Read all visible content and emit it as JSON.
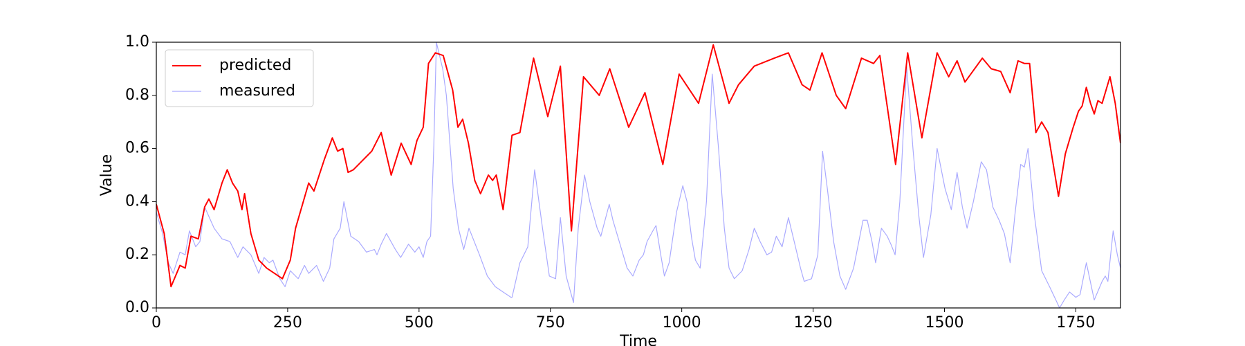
{
  "chart_data": {
    "type": "line",
    "xlabel": "Time",
    "ylabel": "Value",
    "xlim": [
      0,
      1835
    ],
    "ylim": [
      0,
      1
    ],
    "xticks": [
      0,
      250,
      500,
      750,
      1000,
      1250,
      1500,
      1750
    ],
    "yticks": [
      {
        "value": 0,
        "label": "0.0"
      },
      0.2,
      0.4,
      0.6,
      0.8,
      {
        "value": 1,
        "label": "1.0"
      }
    ],
    "grid": false,
    "legend": "upper left",
    "series": [
      {
        "name": "predicted",
        "color": "#ff0000",
        "width": 2,
        "x": [
          0,
          15,
          28,
          45,
          55,
          66,
          80,
          92,
          100,
          110,
          125,
          135,
          145,
          155,
          163,
          168,
          180,
          195,
          210,
          225,
          240,
          255,
          265,
          290,
          300,
          320,
          335,
          345,
          355,
          365,
          375,
          390,
          400,
          410,
          428,
          447,
          466,
          485,
          496,
          508,
          518,
          531,
          546,
          564,
          574,
          583,
          594,
          606,
          617,
          632,
          640,
          647,
          660,
          677,
          692,
          718,
          745,
          769,
          790,
          813,
          843,
          863,
          899,
          930,
          964,
          995,
          1032,
          1060,
          1090,
          1108,
          1138,
          1176,
          1203,
          1229,
          1244,
          1267,
          1294,
          1312,
          1342,
          1365,
          1377,
          1407,
          1430,
          1457,
          1486,
          1508,
          1524,
          1539,
          1572,
          1589,
          1607,
          1625,
          1640,
          1652,
          1662,
          1674,
          1685,
          1697,
          1717,
          1730,
          1745,
          1755,
          1762,
          1770,
          1778,
          1785,
          1792,
          1800,
          1815,
          1825,
          1835
        ],
        "values": [
          0.39,
          0.28,
          0.08,
          0.16,
          0.15,
          0.27,
          0.26,
          0.38,
          0.41,
          0.37,
          0.47,
          0.52,
          0.47,
          0.44,
          0.37,
          0.43,
          0.28,
          0.18,
          0.15,
          0.13,
          0.11,
          0.18,
          0.3,
          0.47,
          0.44,
          0.56,
          0.64,
          0.59,
          0.6,
          0.51,
          0.52,
          0.55,
          0.57,
          0.59,
          0.66,
          0.5,
          0.62,
          0.54,
          0.63,
          0.68,
          0.92,
          0.96,
          0.95,
          0.82,
          0.68,
          0.71,
          0.62,
          0.48,
          0.43,
          0.5,
          0.48,
          0.5,
          0.37,
          0.65,
          0.66,
          0.94,
          0.72,
          0.91,
          0.29,
          0.87,
          0.8,
          0.9,
          0.68,
          0.81,
          0.54,
          0.88,
          0.77,
          0.99,
          0.77,
          0.84,
          0.91,
          0.94,
          0.96,
          0.84,
          0.82,
          0.96,
          0.8,
          0.75,
          0.94,
          0.92,
          0.95,
          0.54,
          0.96,
          0.64,
          0.96,
          0.87,
          0.93,
          0.85,
          0.94,
          0.9,
          0.89,
          0.81,
          0.93,
          0.92,
          0.92,
          0.66,
          0.7,
          0.66,
          0.42,
          0.58,
          0.68,
          0.74,
          0.76,
          0.83,
          0.77,
          0.73,
          0.78,
          0.77,
          0.87,
          0.77,
          0.62
        ]
      },
      {
        "name": "measured",
        "color": "#aaaaff",
        "width": 1.2,
        "x": [
          0,
          12,
          23,
          32,
          45,
          55,
          63,
          75,
          83,
          92,
          110,
          125,
          140,
          155,
          165,
          180,
          195,
          205,
          215,
          222,
          235,
          245,
          255,
          270,
          282,
          290,
          305,
          318,
          330,
          338,
          350,
          357,
          370,
          385,
          400,
          415,
          420,
          428,
          438,
          455,
          465,
          480,
          492,
          500,
          508,
          515,
          522,
          528,
          533,
          545,
          552,
          565,
          575,
          585,
          595,
          615,
          630,
          645,
          660,
          675,
          677,
          692,
          707,
          720,
          735,
          748,
          760,
          769,
          780,
          794,
          803,
          815,
          825,
          839,
          846,
          862,
          869,
          881,
          896,
          907,
          919,
          927,
          934,
          945,
          951,
          960,
          967,
          976,
          990,
          1002,
          1010,
          1019,
          1026,
          1035,
          1047,
          1058,
          1070,
          1081,
          1090,
          1100,
          1115,
          1128,
          1138,
          1149,
          1162,
          1171,
          1180,
          1191,
          1203,
          1214,
          1226,
          1233,
          1247,
          1259,
          1268,
          1277,
          1289,
          1301,
          1312,
          1327,
          1345,
          1353,
          1362,
          1369,
          1380,
          1391,
          1398,
          1406,
          1415,
          1428,
          1440,
          1451,
          1460,
          1474,
          1486,
          1501,
          1513,
          1524,
          1534,
          1543,
          1555,
          1570,
          1580,
          1592,
          1604,
          1614,
          1625,
          1634,
          1645,
          1652,
          1659,
          1671,
          1685,
          1700,
          1712,
          1719,
          1728,
          1738,
          1750,
          1758,
          1770,
          1785,
          1800,
          1806,
          1811,
          1821,
          1829,
          1835
        ],
        "values": [
          0.36,
          0.28,
          0.17,
          0.13,
          0.21,
          0.2,
          0.29,
          0.23,
          0.25,
          0.38,
          0.3,
          0.26,
          0.25,
          0.19,
          0.23,
          0.2,
          0.13,
          0.19,
          0.17,
          0.18,
          0.11,
          0.08,
          0.14,
          0.11,
          0.16,
          0.13,
          0.16,
          0.1,
          0.15,
          0.26,
          0.3,
          0.4,
          0.27,
          0.25,
          0.21,
          0.22,
          0.2,
          0.24,
          0.28,
          0.22,
          0.19,
          0.24,
          0.21,
          0.23,
          0.19,
          0.25,
          0.27,
          0.6,
          1,
          0.9,
          0.8,
          0.45,
          0.3,
          0.22,
          0.3,
          0.2,
          0.12,
          0.08,
          0.06,
          0.04,
          0.04,
          0.17,
          0.23,
          0.52,
          0.3,
          0.12,
          0.11,
          0.34,
          0.12,
          0.02,
          0.3,
          0.5,
          0.4,
          0.3,
          0.27,
          0.39,
          0.33,
          0.25,
          0.15,
          0.12,
          0.18,
          0.2,
          0.25,
          0.29,
          0.31,
          0.2,
          0.12,
          0.17,
          0.36,
          0.46,
          0.4,
          0.26,
          0.18,
          0.15,
          0.4,
          0.88,
          0.6,
          0.3,
          0.15,
          0.11,
          0.14,
          0.22,
          0.3,
          0.25,
          0.2,
          0.21,
          0.27,
          0.23,
          0.34,
          0.25,
          0.15,
          0.1,
          0.11,
          0.2,
          0.59,
          0.45,
          0.25,
          0.12,
          0.07,
          0.15,
          0.33,
          0.33,
          0.25,
          0.17,
          0.3,
          0.27,
          0.24,
          0.2,
          0.4,
          0.91,
          0.6,
          0.35,
          0.19,
          0.35,
          0.6,
          0.45,
          0.37,
          0.51,
          0.38,
          0.3,
          0.4,
          0.55,
          0.52,
          0.38,
          0.33,
          0.28,
          0.17,
          0.35,
          0.54,
          0.53,
          0.6,
          0.35,
          0.14,
          0.08,
          0.03,
          0,
          0.03,
          0.06,
          0.04,
          0.05,
          0.17,
          0.03,
          0.1,
          0.12,
          0.1,
          0.29,
          0.2,
          0.15
        ]
      }
    ]
  }
}
